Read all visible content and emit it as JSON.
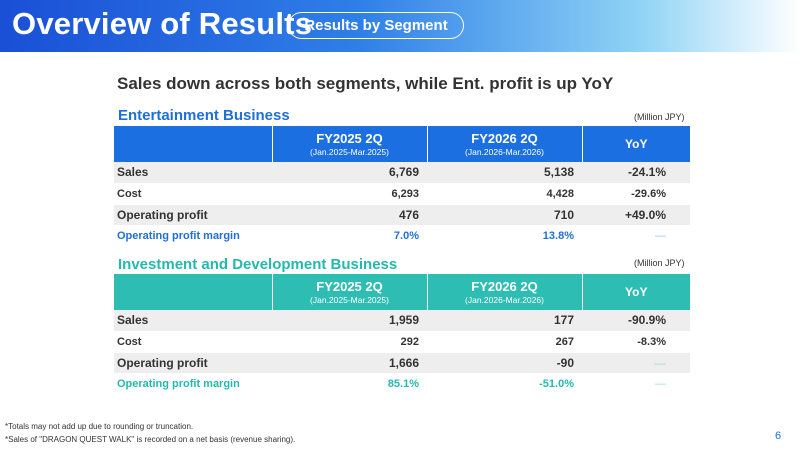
{
  "header": {
    "title": "Overview of Results",
    "pill": "Results by Segment"
  },
  "subtitle": "Sales down across both segments, while Ent. profit is up YoY",
  "unit_label": "(Million JPY)",
  "columns": {
    "prev": {
      "period": "FY2025 2Q",
      "range": "(Jan.2025-Mar.2025)"
    },
    "curr": {
      "period": "FY2026 2Q",
      "range": "(Jan.2026-Mar.2026)"
    },
    "yoy": "YoY"
  },
  "colors": {
    "header_blue": "#1c6fe0",
    "entertainment_accent": "#1f6fd8",
    "investment_accent": "#2ebdb2"
  },
  "entertainment": {
    "title": "Entertainment Business",
    "rows": [
      {
        "label": "Sales",
        "prev": "6,769",
        "curr": "5,138",
        "yoy": "-24.1%"
      },
      {
        "label": "Cost",
        "prev": "6,293",
        "curr": "4,428",
        "yoy": "-29.6%"
      },
      {
        "label": "Operating profit",
        "prev": "476",
        "curr": "710",
        "yoy": "+49.0%"
      },
      {
        "label": "Operating profit margin",
        "prev": "7.0%",
        "curr": "13.8%",
        "yoy": "—"
      }
    ]
  },
  "investment": {
    "title": "Investment and Development Business",
    "rows": [
      {
        "label": "Sales",
        "prev": "1,959",
        "curr": "177",
        "yoy": "-90.9%"
      },
      {
        "label": "Cost",
        "prev": "292",
        "curr": "267",
        "yoy": "-8.3%"
      },
      {
        "label": "Operating profit",
        "prev": "1,666",
        "curr": "-90",
        "yoy": "—"
      },
      {
        "label": "Operating profit margin",
        "prev": "85.1%",
        "curr": "-51.0%",
        "yoy": "—"
      }
    ]
  },
  "footnotes": [
    "*Totals may not add up due to rounding or truncation.",
    "*Sales of \"DRAGON QUEST WALK\" is recorded on a net basis (revenue sharing)."
  ],
  "page_number": "6"
}
